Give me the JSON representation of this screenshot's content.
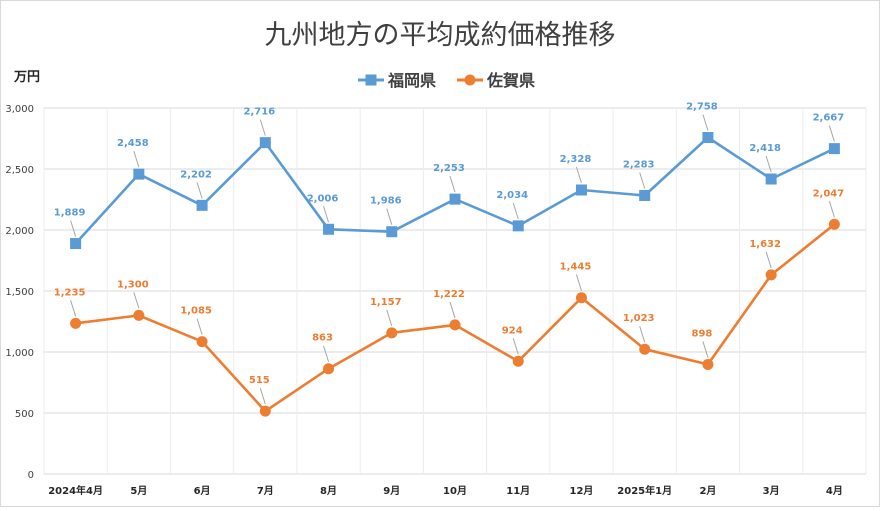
{
  "chart_data": {
    "type": "line",
    "title": "九州地方の平均成約価格推移",
    "ylabel": "万円",
    "xlabel": "",
    "categories": [
      "2024年4月",
      "5月",
      "6月",
      "7月",
      "8月",
      "9月",
      "10月",
      "11月",
      "12月",
      "2025年1月",
      "2月",
      "3月",
      "4月"
    ],
    "ylim": [
      0,
      3000
    ],
    "yticks": [
      0,
      500,
      1000,
      1500,
      2000,
      2500,
      3000
    ],
    "ytick_labels": [
      "0",
      "500",
      "1,000",
      "1,500",
      "2,000",
      "2,500",
      "3,000"
    ],
    "grid": true,
    "legend_position": "top-center",
    "series": [
      {
        "name": "福岡県",
        "color": "#5b9bd5",
        "marker": "square",
        "values": [
          1889,
          2458,
          2202,
          2716,
          2006,
          1986,
          2253,
          2034,
          2328,
          2283,
          2758,
          2418,
          2667
        ],
        "labels": [
          "1,889",
          "2,458",
          "2,202",
          "2,716",
          "2,006",
          "1,986",
          "2,253",
          "2,034",
          "2,328",
          "2,283",
          "2,758",
          "2,418",
          "2,667"
        ]
      },
      {
        "name": "佐賀県",
        "color": "#ed7d31",
        "marker": "circle",
        "values": [
          1235,
          1300,
          1085,
          515,
          863,
          1157,
          1222,
          924,
          1445,
          1023,
          898,
          1632,
          2047
        ],
        "labels": [
          "1,235",
          "1,300",
          "1,085",
          "515",
          "863",
          "1,157",
          "1,222",
          "924",
          "1,445",
          "1,023",
          "898",
          "1,632",
          "2,047"
        ]
      }
    ]
  }
}
